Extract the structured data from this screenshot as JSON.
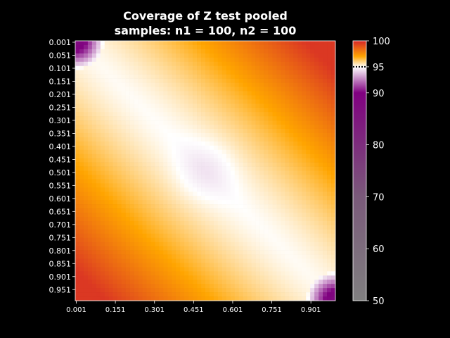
{
  "chart_data": {
    "type": "heatmap",
    "title_lines": [
      "Coverage of Z test pooled",
      "samples: n1 = 100, n2 = 100"
    ],
    "xlabel": "",
    "ylabel": "",
    "x_ticks": [
      "0.001",
      "0.151",
      "0.301",
      "0.451",
      "0.601",
      "0.751",
      "0.901"
    ],
    "y_ticks": [
      "0.001",
      "0.051",
      "0.101",
      "0.151",
      "0.201",
      "0.251",
      "0.301",
      "0.351",
      "0.401",
      "0.451",
      "0.501",
      "0.551",
      "0.601",
      "0.651",
      "0.701",
      "0.751",
      "0.801",
      "0.851",
      "0.901",
      "0.951"
    ],
    "axis_range": [
      0.001,
      0.999
    ],
    "grid": false,
    "colorbar": {
      "range": [
        50,
        100
      ],
      "ticks": [
        50,
        60,
        70,
        80,
        90,
        95,
        100
      ],
      "reference_line": 95,
      "stops": [
        {
          "value": 50,
          "color": "#808080"
        },
        {
          "value": 70,
          "color": "#7a5a7a"
        },
        {
          "value": 90,
          "color": "#800080"
        },
        {
          "value": 95,
          "color": "#ffffff"
        },
        {
          "value": 97,
          "color": "#ffa500"
        },
        {
          "value": 100,
          "color": "#d62728"
        }
      ]
    },
    "coverage_samples": [
      {
        "x": 0.5,
        "y": 0.5,
        "value": 94.5
      },
      {
        "x": 0.3,
        "y": 0.3,
        "value": 95.2
      },
      {
        "x": 0.7,
        "y": 0.7,
        "value": 95.2
      },
      {
        "x": 0.2,
        "y": 0.8,
        "value": 98.0
      },
      {
        "x": 0.8,
        "y": 0.2,
        "value": 98.0
      },
      {
        "x": 0.001,
        "y": 0.999,
        "value": 100
      },
      {
        "x": 0.999,
        "y": 0.001,
        "value": 100
      },
      {
        "x": 0.01,
        "y": 0.01,
        "value": 88
      },
      {
        "x": 0.99,
        "y": 0.99,
        "value": 88
      }
    ]
  }
}
